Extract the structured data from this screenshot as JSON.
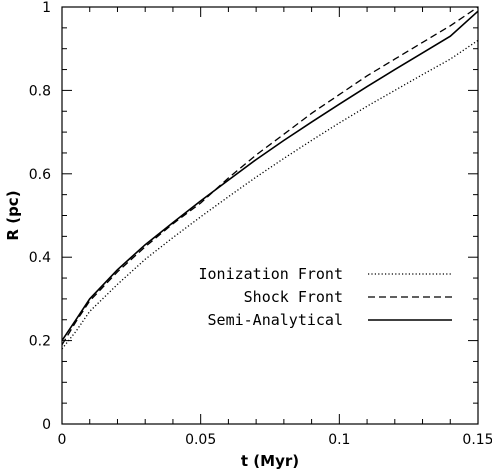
{
  "chart_data": {
    "type": "line",
    "title": "",
    "xlabel": "t (Myr)",
    "ylabel": "R (pc)",
    "xlim": [
      0,
      0.15
    ],
    "ylim": [
      0,
      1
    ],
    "xticks": [
      0,
      0.05,
      0.1,
      0.15
    ],
    "xtick_labels": [
      "0",
      "0.05",
      "0.1",
      "0.15"
    ],
    "yticks": [
      0,
      0.2,
      0.4,
      0.6,
      0.8,
      1
    ],
    "ytick_labels": [
      "0",
      "0.2",
      "0.4",
      "0.6",
      "0.8",
      "1"
    ],
    "grid": false,
    "legend_position": "lower-right",
    "series": [
      {
        "name": "Ionization Front",
        "style": "dotted",
        "x": [
          0,
          0.005,
          0.01,
          0.02,
          0.03,
          0.04,
          0.05,
          0.06,
          0.07,
          0.08,
          0.09,
          0.1,
          0.11,
          0.12,
          0.13,
          0.14,
          0.15
        ],
        "y": [
          0.18,
          0.222,
          0.27,
          0.335,
          0.395,
          0.447,
          0.497,
          0.545,
          0.592,
          0.637,
          0.68,
          0.722,
          0.762,
          0.8,
          0.838,
          0.875,
          0.92
        ]
      },
      {
        "name": "Shock Front",
        "style": "dashed",
        "x": [
          0,
          0.005,
          0.01,
          0.02,
          0.03,
          0.04,
          0.05,
          0.06,
          0.07,
          0.08,
          0.09,
          0.1,
          0.11,
          0.12,
          0.13,
          0.14,
          0.15
        ],
        "y": [
          0.19,
          0.245,
          0.295,
          0.365,
          0.425,
          0.48,
          0.53,
          0.59,
          0.645,
          0.695,
          0.745,
          0.79,
          0.835,
          0.875,
          0.915,
          0.955,
          1.0
        ]
      },
      {
        "name": "Semi-Analytical",
        "style": "solid",
        "x": [
          0,
          0.005,
          0.01,
          0.02,
          0.03,
          0.04,
          0.05,
          0.06,
          0.07,
          0.08,
          0.09,
          0.1,
          0.11,
          0.12,
          0.13,
          0.14,
          0.15
        ],
        "y": [
          0.2,
          0.25,
          0.3,
          0.37,
          0.43,
          0.483,
          0.535,
          0.585,
          0.634,
          0.68,
          0.724,
          0.767,
          0.809,
          0.85,
          0.89,
          0.93,
          0.99
        ]
      }
    ]
  }
}
